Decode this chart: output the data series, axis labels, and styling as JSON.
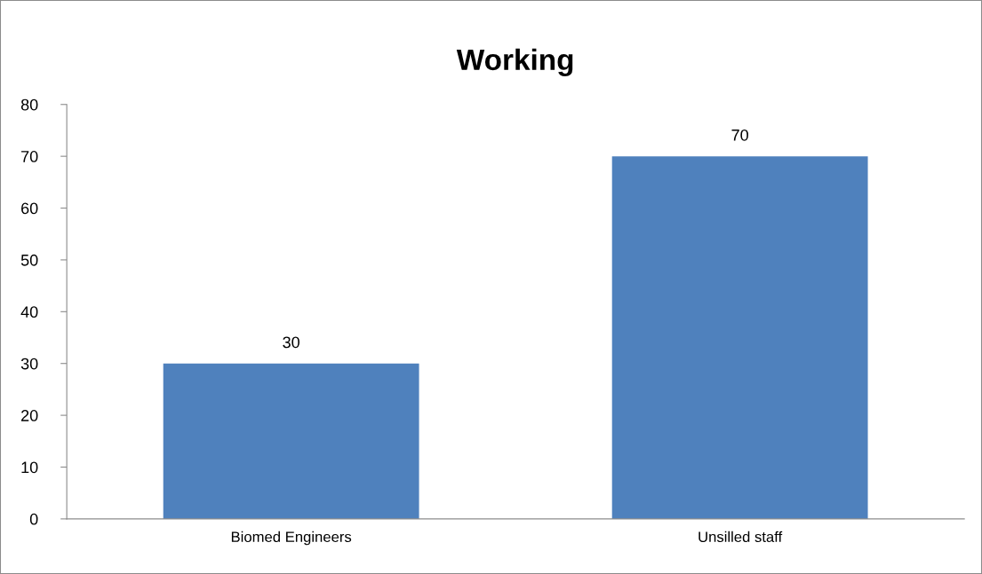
{
  "chart_data": {
    "type": "bar",
    "title": "Working",
    "categories": [
      "Biomed Engineers",
      "Unsilled staff"
    ],
    "values": [
      30,
      70
    ],
    "color": "#4f81bd",
    "ylim": [
      0,
      80
    ],
    "yticks": [
      0,
      10,
      20,
      30,
      40,
      50,
      60,
      70,
      80
    ],
    "data_labels": true,
    "grid": false
  }
}
